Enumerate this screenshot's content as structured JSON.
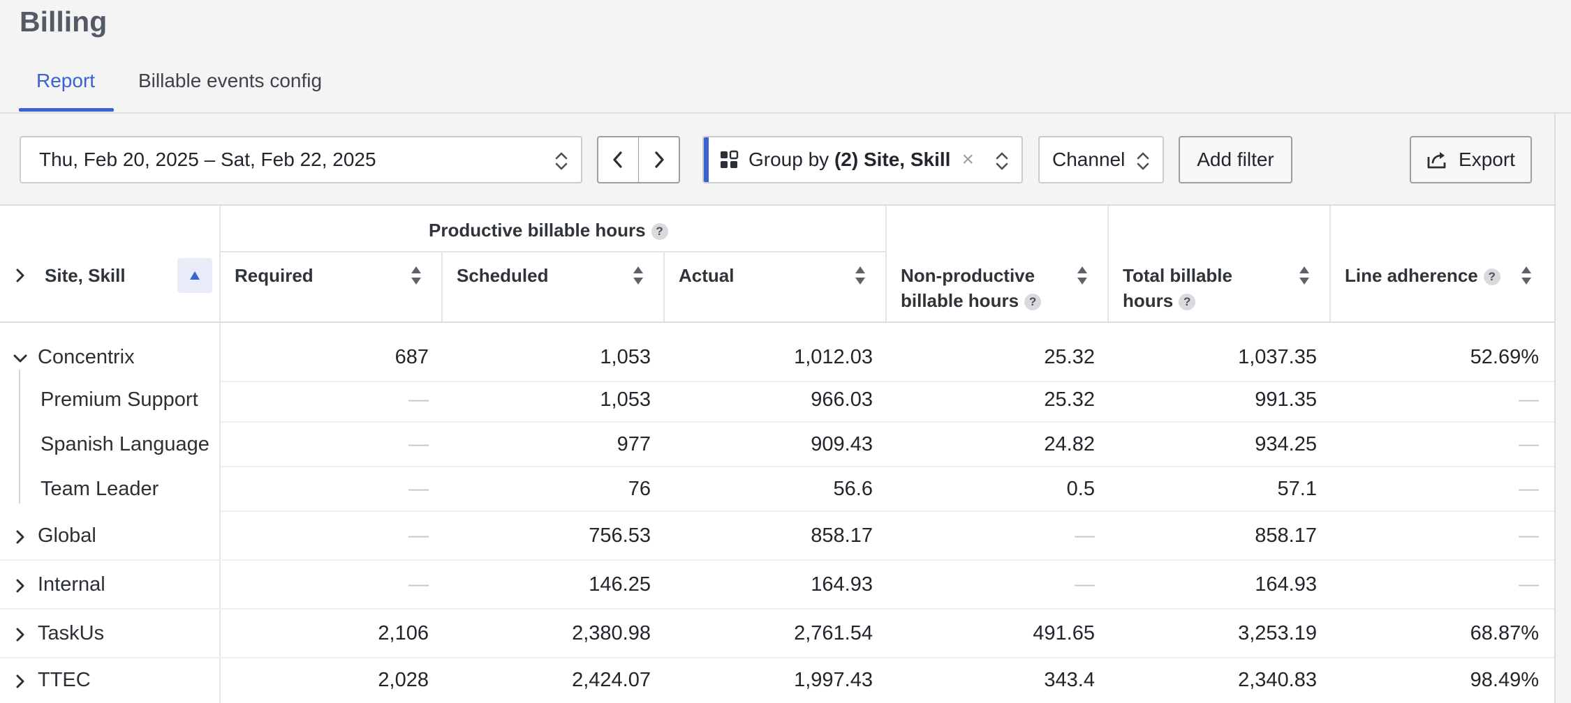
{
  "page": {
    "title": "Billing"
  },
  "tabs": [
    {
      "label": "Report",
      "active": true
    },
    {
      "label": "Billable events config",
      "active": false
    }
  ],
  "toolbar": {
    "date_range": "Thu, Feb 20, 2025 – Sat, Feb 22, 2025",
    "group_by_prefix": "Group by ",
    "group_by_value": "(2) Site, Skill",
    "channel_label": "Channel",
    "add_filter_label": "Add filter",
    "export_label": "Export"
  },
  "table": {
    "first_column_header": "Site, Skill",
    "group_header": "Productive billable hours",
    "columns": {
      "required": "Required",
      "scheduled": "Scheduled",
      "actual": "Actual",
      "nonproductive_line1": "Non-productive",
      "nonproductive_line2": "billable hours",
      "total_line1": "Total billable",
      "total_line2": "hours",
      "adherence": "Line adherence"
    },
    "help_glyph": "?",
    "rows": [
      {
        "label": "Concentrix",
        "expanded": true,
        "required": "687",
        "scheduled": "1,053",
        "actual": "1,012.03",
        "nonproductive": "25.32",
        "total": "1,037.35",
        "adherence": "52.69%"
      },
      {
        "label": "Premium Support",
        "child": true,
        "required": "—",
        "scheduled": "1,053",
        "actual": "966.03",
        "nonproductive": "25.32",
        "total": "991.35",
        "adherence": "—"
      },
      {
        "label": "Spanish Language",
        "child": true,
        "required": "—",
        "scheduled": "977",
        "actual": "909.43",
        "nonproductive": "24.82",
        "total": "934.25",
        "adherence": "—"
      },
      {
        "label": "Team Leader",
        "child": true,
        "required": "—",
        "scheduled": "76",
        "actual": "56.6",
        "nonproductive": "0.5",
        "total": "57.1",
        "adherence": "—"
      },
      {
        "label": "Global",
        "expanded": false,
        "required": "—",
        "scheduled": "756.53",
        "actual": "858.17",
        "nonproductive": "—",
        "total": "858.17",
        "adherence": "—"
      },
      {
        "label": "Internal",
        "expanded": false,
        "required": "—",
        "scheduled": "146.25",
        "actual": "164.93",
        "nonproductive": "—",
        "total": "164.93",
        "adherence": "—"
      },
      {
        "label": "TaskUs",
        "expanded": false,
        "required": "2,106",
        "scheduled": "2,380.98",
        "actual": "2,761.54",
        "nonproductive": "491.65",
        "total": "3,253.19",
        "adherence": "68.87%"
      },
      {
        "label": "TTEC",
        "expanded": false,
        "required": "2,028",
        "scheduled": "2,424.07",
        "actual": "1,997.43",
        "nonproductive": "343.4",
        "total": "2,340.83",
        "adherence": "98.49%"
      }
    ]
  },
  "colors": {
    "accent": "#3a62d1",
    "header_bg": "#f4f4f5",
    "border": "#dcdde0",
    "dash": "#c4c6ca"
  }
}
